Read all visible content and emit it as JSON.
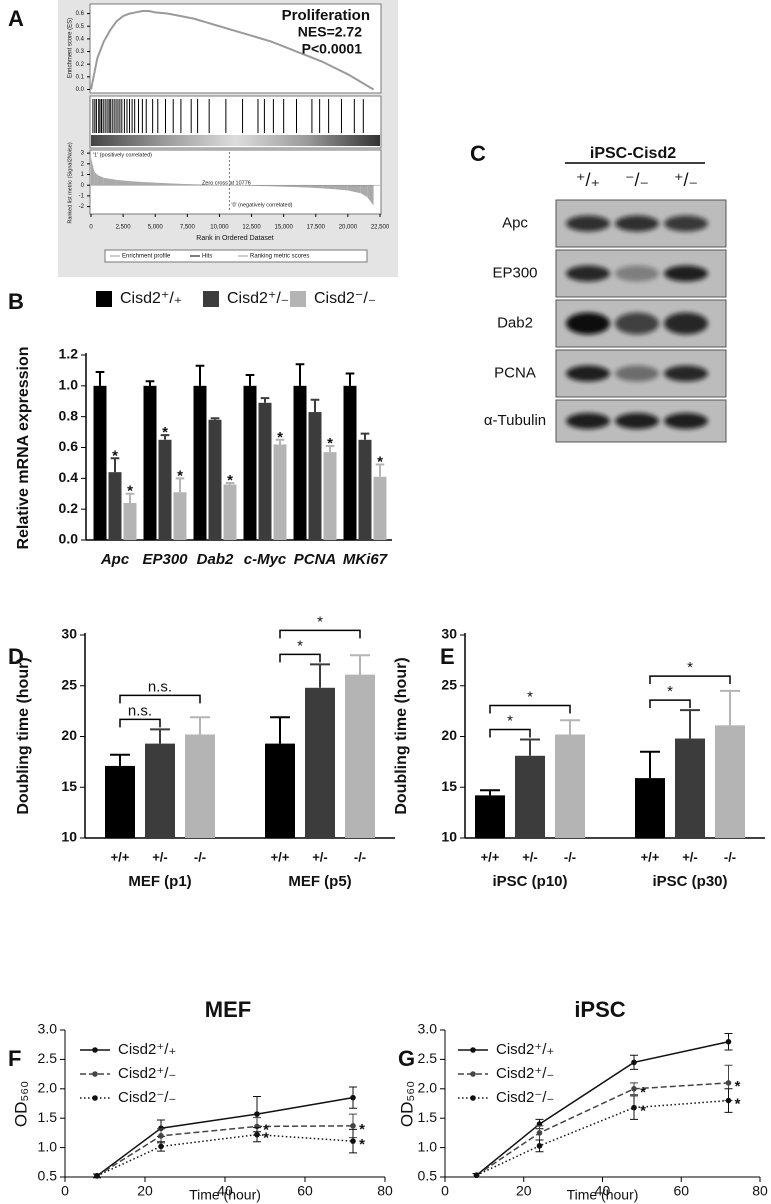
{
  "chart_data": [
    {
      "panel": "A",
      "type": "gsea",
      "title": "Proliferation",
      "annotations": [
        "NES=2.72",
        "P<0.0001"
      ],
      "ylabel": "Enrichment score (ES)",
      "color": "#9a9a9a",
      "x": [
        0,
        500,
        1000,
        1500,
        2000,
        2500,
        3000,
        3500,
        4000,
        4500,
        5000,
        6000,
        7000,
        8000,
        9000,
        10000,
        11000,
        12000,
        13000,
        14000,
        15000,
        16000,
        17000,
        18000,
        19000,
        20000,
        21000,
        22000
      ],
      "values": [
        0,
        0.25,
        0.38,
        0.47,
        0.54,
        0.58,
        0.6,
        0.61,
        0.62,
        0.62,
        0.61,
        0.6,
        0.58,
        0.56,
        0.53,
        0.5,
        0.47,
        0.44,
        0.41,
        0.38,
        0.34,
        0.3,
        0.26,
        0.22,
        0.17,
        0.12,
        0.06,
        0
      ],
      "ylim": [
        -0.02,
        0.66
      ],
      "yticks": [
        {
          "value": 0,
          "label": "0.0"
        },
        0.1,
        0.2,
        0.3,
        0.4,
        0.5,
        0.6
      ],
      "hits": [
        150,
        300,
        420,
        600,
        700,
        820,
        950,
        1100,
        1250,
        1400,
        1500,
        1650,
        1800,
        1950,
        2100,
        2250,
        2400,
        2600,
        2800,
        3000,
        3200,
        3400,
        3700,
        4000,
        4300,
        4800,
        5200,
        5800,
        6400,
        7000,
        7800,
        8300,
        9200,
        10500,
        11800,
        13000,
        13500,
        14200,
        15000,
        16000,
        17200,
        17800,
        18500,
        19500,
        20500,
        21200
      ],
      "metric": {
        "ylabel": "Ranked list metric (Signal2Noise)",
        "x": [
          0,
          250,
          500,
          1000,
          2000,
          3000,
          4000,
          5000,
          6000,
          7000,
          8000,
          9000,
          10000,
          10776,
          12000,
          13000,
          14000,
          15000,
          16000,
          17000,
          18000,
          19000,
          20000,
          21000,
          21500,
          22000
        ],
        "values": [
          2.6,
          1.3,
          0.95,
          0.7,
          0.5,
          0.38,
          0.3,
          0.24,
          0.18,
          0.13,
          0.09,
          0.05,
          0.02,
          0,
          -0.04,
          -0.07,
          -0.1,
          -0.14,
          -0.18,
          -0.23,
          -0.3,
          -0.38,
          -0.5,
          -0.75,
          -1.1,
          -1.9
        ],
        "ylim": [
          -2.6,
          3.2
        ],
        "yticks": [
          3,
          2,
          1,
          0,
          -1,
          -2
        ],
        "zero_cross": 10776,
        "zero_cross_label": "Zero cross at 10776",
        "pos_label": "'1' (positively correlated)",
        "neg_label": "'0' (negatively correlated)"
      },
      "xlim": [
        0,
        22500
      ],
      "xticks": [
        0,
        {
          "value": 2500,
          "label": "2,500"
        },
        {
          "value": 5000,
          "label": "5,000"
        },
        {
          "value": 7500,
          "label": "7,500"
        },
        {
          "value": 10000,
          "label": "10,000"
        },
        {
          "value": 12500,
          "label": "12,500"
        },
        {
          "value": 15000,
          "label": "15,000"
        },
        {
          "value": 17500,
          "label": "17,500"
        },
        {
          "value": 20000,
          "label": "20,000"
        },
        {
          "value": 22500,
          "label": "22,500"
        }
      ],
      "xlabel": "Rank in Ordered Dataset",
      "legend": [
        "Enrichment profile",
        "Hits",
        "Ranking metric scores"
      ]
    },
    {
      "panel": "B",
      "type": "bar",
      "significance": "stars",
      "legend": true,
      "categories": [
        "Apc",
        "EP300",
        "Dab2",
        "c-Myc",
        "PCNA",
        "MKi67"
      ],
      "series": [
        {
          "name": "Cisd2⁺/₊",
          "color": "#000000",
          "values": [
            1.0,
            1.0,
            1.0,
            1.0,
            1.0,
            1.0
          ],
          "errors": [
            0.09,
            0.03,
            0.13,
            0.07,
            0.14,
            0.08
          ]
        },
        {
          "name": "Cisd2⁺/₋",
          "color": "#3c3c3c",
          "values": [
            0.44,
            0.65,
            0.78,
            0.89,
            0.83,
            0.65
          ],
          "errors": [
            0.09,
            0.03,
            0.01,
            0.03,
            0.08,
            0.04
          ],
          "annotations": [
            "*",
            "*",
            null,
            null,
            null,
            null
          ]
        },
        {
          "name": "Cisd2⁻/₋",
          "color": "#b4b4b4",
          "values": [
            0.24,
            0.31,
            0.36,
            0.62,
            0.57,
            0.41
          ],
          "errors": [
            0.06,
            0.09,
            0.01,
            0.03,
            0.04,
            0.08
          ],
          "annotations": [
            "*",
            "*",
            "*",
            "*",
            "*",
            "*"
          ]
        }
      ],
      "ylabel": "Relative mRNA expression",
      "ylim": [
        0,
        1.2
      ],
      "yticks": [
        {
          "value": 0,
          "label": "0.0"
        },
        0.2,
        0.4,
        0.6,
        0.8,
        {
          "value": 1,
          "label": "1.0"
        },
        1.2
      ]
    },
    {
      "panel": "C",
      "type": "blot",
      "title": "iPSC-Cisd2",
      "columns": [
        "⁺/₊",
        "⁻/₋",
        "⁺/₋"
      ],
      "rows": [
        "Apc",
        "EP300",
        "Dab2",
        "PCNA",
        "α-Tubulin"
      ]
    },
    {
      "panel": "D",
      "type": "bar",
      "significance": "brackets",
      "categories": [
        "MEF (p1)",
        "MEF (p5)"
      ],
      "series": [
        {
          "name": "+/+",
          "color": "#000000",
          "values": [
            17.1,
            19.3
          ],
          "errors": [
            1.1,
            2.6
          ]
        },
        {
          "name": "+/-",
          "color": "#3c3c3c",
          "values": [
            19.3,
            24.8
          ],
          "errors": [
            1.4,
            2.3
          ],
          "annotations": [
            "n.s.",
            "*"
          ]
        },
        {
          "name": "-/-",
          "color": "#b4b4b4",
          "values": [
            20.2,
            26.1
          ],
          "errors": [
            1.7,
            1.9
          ],
          "annotations": [
            "n.s.",
            "*"
          ]
        }
      ],
      "ylabel": "Doubling time (hour)",
      "ylim": [
        10,
        30
      ],
      "yticks": [
        10,
        15,
        20,
        25,
        30
      ]
    },
    {
      "panel": "E",
      "type": "bar",
      "significance": "brackets",
      "categories": [
        "iPSC (p10)",
        "iPSC (p30)"
      ],
      "series": [
        {
          "name": "+/+",
          "color": "#000000",
          "values": [
            14.2,
            15.9
          ],
          "errors": [
            0.5,
            2.6
          ]
        },
        {
          "name": "+/-",
          "color": "#3c3c3c",
          "values": [
            18.1,
            19.8
          ],
          "errors": [
            1.6,
            2.8
          ],
          "annotations": [
            "*",
            "*"
          ]
        },
        {
          "name": "-/-",
          "color": "#b4b4b4",
          "values": [
            20.2,
            21.1
          ],
          "errors": [
            1.4,
            3.4
          ],
          "annotations": [
            "*",
            "*"
          ]
        }
      ],
      "ylabel": "Doubling time (hour)",
      "ylim": [
        10,
        30
      ],
      "yticks": [
        10,
        15,
        20,
        25,
        30
      ]
    },
    {
      "panel": "F",
      "type": "line",
      "title": "MEF",
      "x": [
        8,
        24,
        48,
        72
      ],
      "series": [
        {
          "name": "Cisd2⁺/₊",
          "color": "#111111",
          "dash": "solid",
          "values": [
            0.52,
            1.33,
            1.57,
            1.85
          ],
          "errors": [
            0.03,
            0.14,
            0.3,
            0.18
          ]
        },
        {
          "name": "Cisd2⁺/₋",
          "color": "#444444",
          "dash": "dashed",
          "values": [
            0.52,
            1.2,
            1.36,
            1.37
          ],
          "errors": [
            0.03,
            0.12,
            0.15,
            0.2
          ],
          "annotations": [
            null,
            null,
            "*",
            "*"
          ]
        },
        {
          "name": "Cisd2⁻/₋",
          "color": "#111111",
          "dash": "dotted",
          "values": [
            0.52,
            1.02,
            1.22,
            1.11
          ],
          "errors": [
            0.03,
            0.08,
            0.12,
            0.2
          ],
          "annotations": [
            null,
            null,
            "*",
            "*"
          ]
        }
      ],
      "xlabel": "Time (hour)",
      "ylabel": "OD₅₆₀",
      "xlim": [
        0,
        80
      ],
      "xticks": [
        0,
        20,
        40,
        60,
        80
      ],
      "ylim": [
        0.5,
        3
      ],
      "yticks": [
        0.5,
        {
          "value": 1,
          "label": "1.0"
        },
        1.5,
        {
          "value": 2,
          "label": "2.0"
        },
        2.5,
        {
          "value": 3,
          "label": "3.0"
        }
      ]
    },
    {
      "panel": "G",
      "type": "line",
      "title": "iPSC",
      "x": [
        8,
        24,
        48,
        72
      ],
      "series": [
        {
          "name": "Cisd2⁺/₊",
          "color": "#111111",
          "dash": "solid",
          "values": [
            0.53,
            1.4,
            2.45,
            2.8
          ],
          "errors": [
            0.03,
            0.08,
            0.12,
            0.14
          ]
        },
        {
          "name": "Cisd2⁺/₋",
          "color": "#444444",
          "dash": "dashed",
          "values": [
            0.53,
            1.25,
            2.0,
            2.1
          ],
          "errors": [
            0.03,
            0.12,
            0.1,
            0.3
          ],
          "annotations": [
            null,
            null,
            "*",
            "*"
          ]
        },
        {
          "name": "Cisd2⁻/₋",
          "color": "#111111",
          "dash": "dotted",
          "values": [
            0.53,
            1.03,
            1.68,
            1.8
          ],
          "errors": [
            0.03,
            0.1,
            0.2,
            0.2
          ],
          "annotations": [
            null,
            null,
            "*",
            "*"
          ]
        }
      ],
      "xlabel": "Time (hour)",
      "ylabel": "OD₅₆₀",
      "xlim": [
        0,
        80
      ],
      "xticks": [
        0,
        20,
        40,
        60,
        80
      ],
      "ylim": [
        0.5,
        3
      ],
      "yticks": [
        0.5,
        {
          "value": 1,
          "label": "1.0"
        },
        1.5,
        {
          "value": 2,
          "label": "2.0"
        },
        2.5,
        {
          "value": 3,
          "label": "3.0"
        }
      ]
    }
  ]
}
